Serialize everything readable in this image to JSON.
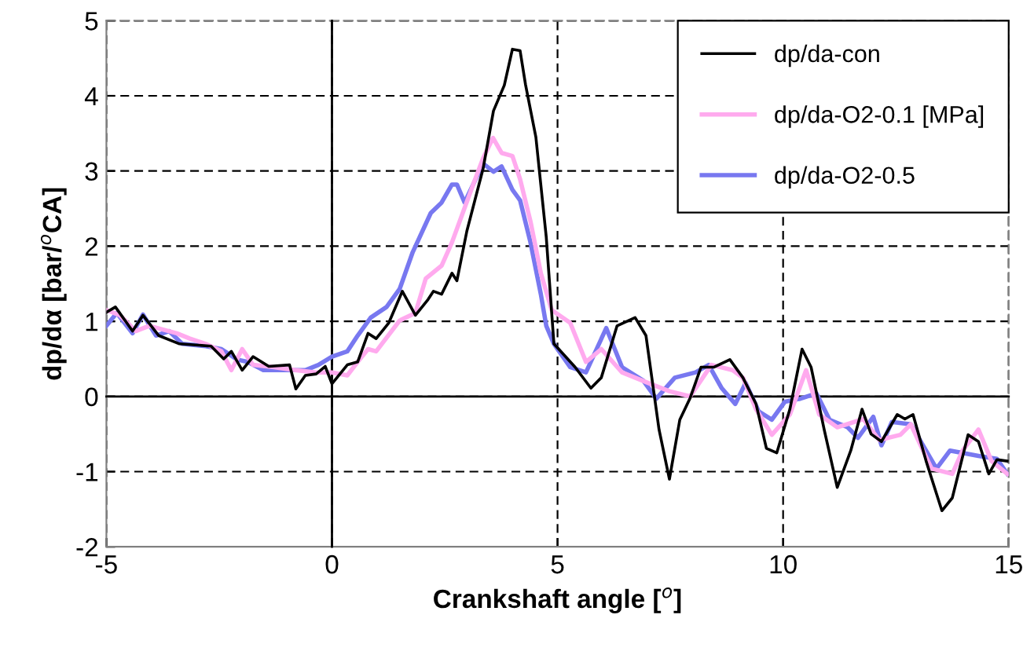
{
  "chart_data": {
    "type": "line",
    "xlabel": "Crankshaft angle [$^{o}$]",
    "ylabel": "dp/dα [bar/$^{o}$CA]",
    "xlim": [
      -5,
      15
    ],
    "xticks": [
      -5,
      0,
      5,
      10,
      15
    ],
    "ylim": [
      -2,
      5
    ],
    "yticks": [
      -2,
      -1,
      0,
      1,
      2,
      3,
      4,
      5
    ],
    "grid": true,
    "legend": "top right",
    "line_style": "solid",
    "marker": "none",
    "series": [
      {
        "name": "dp/da-con",
        "color": "#000000",
        "x": [
          -5,
          -4.8,
          -4.42,
          -4.19,
          -3.84,
          -3.38,
          -2.68,
          -2.4,
          -2.23,
          -1.99,
          -1.75,
          -1.4,
          -0.94,
          -0.8,
          -0.59,
          -0.35,
          -0.15,
          0,
          0.34,
          0.57,
          0.8,
          0.98,
          1.26,
          1.56,
          1.85,
          2.13,
          2.25,
          2.43,
          2.66,
          2.77,
          2.99,
          3.35,
          3.58,
          3.82,
          4.0,
          4.17,
          4.29,
          4.52,
          4.75,
          4.92,
          5.39,
          5.74,
          5.97,
          6.32,
          6.72,
          6.96,
          7.25,
          7.48,
          7.71,
          7.94,
          8.18,
          8.47,
          8.82,
          9.11,
          9.4,
          9.63,
          9.86,
          10.15,
          10.42,
          10.62,
          10.91,
          11.2,
          11.5,
          11.75,
          11.95,
          12.18,
          12.53,
          12.7,
          12.88,
          13.17,
          13.52,
          13.75,
          14.1,
          14.33,
          14.56,
          14.74,
          14.97
        ],
        "values": [
          1.12,
          1.19,
          0.87,
          1.08,
          0.81,
          0.7,
          0.67,
          0.5,
          0.6,
          0.35,
          0.53,
          0.4,
          0.42,
          0.1,
          0.28,
          0.3,
          0.4,
          0.17,
          0.42,
          0.46,
          0.84,
          0.77,
          0.98,
          1.4,
          1.08,
          1.29,
          1.4,
          1.36,
          1.64,
          1.54,
          2.2,
          3.03,
          3.8,
          4.14,
          4.62,
          4.6,
          4.15,
          3.45,
          2.12,
          0.7,
          0.39,
          0.11,
          0.25,
          0.94,
          1.05,
          0.81,
          -0.44,
          -1.1,
          -0.31,
          -0.02,
          0.39,
          0.39,
          0.49,
          0.25,
          -0.1,
          -0.69,
          -0.75,
          -0.17,
          0.63,
          0.39,
          -0.44,
          -1.21,
          -0.72,
          -0.17,
          -0.5,
          -0.6,
          -0.24,
          -0.3,
          -0.24,
          -0.86,
          -1.52,
          -1.35,
          -0.51,
          -0.6,
          -1.03,
          -0.84,
          -0.86
        ]
      },
      {
        "name": "dp/da-O2-0.1 [MPa]",
        "color": "#ffaaee",
        "x": [
          -5,
          -4.7,
          -4.35,
          -4.05,
          -3.44,
          -3.15,
          -2.8,
          -2.45,
          -2.23,
          -1.99,
          -1.75,
          -1.29,
          -0.82,
          -0.35,
          0,
          0.34,
          0.57,
          0.8,
          0.98,
          1.5,
          1.85,
          2.08,
          2.43,
          2.66,
          3.13,
          3.35,
          3.57,
          3.76,
          4.0,
          4.17,
          4.4,
          4.63,
          4.87,
          5.28,
          5.63,
          5.97,
          6.43,
          7.01,
          7.48,
          7.94,
          8.41,
          8.88,
          9.11,
          9.4,
          9.75,
          10.15,
          10.51,
          10.8,
          11.2,
          11.78,
          12.13,
          12.6,
          12.83,
          13.29,
          13.75,
          13.98,
          14.33,
          14.62,
          14.97
        ],
        "values": [
          1.15,
          1.08,
          0.87,
          0.94,
          0.84,
          0.77,
          0.7,
          0.6,
          0.35,
          0.63,
          0.42,
          0.39,
          0.35,
          0.32,
          0.32,
          0.28,
          0.46,
          0.63,
          0.6,
          1.01,
          1.11,
          1.57,
          1.74,
          2.05,
          2.82,
          3.17,
          3.44,
          3.24,
          3.2,
          2.89,
          2.33,
          1.64,
          1.15,
          0.98,
          0.46,
          0.63,
          0.32,
          0.18,
          0.07,
          0,
          0.42,
          0.35,
          0.25,
          -0.17,
          -0.51,
          -0.24,
          0.35,
          -0.24,
          -0.41,
          -0.3,
          -0.58,
          -0.51,
          -0.37,
          -0.96,
          -1.03,
          -0.72,
          -0.44,
          -0.86,
          -1.03
        ]
      },
      {
        "name": "dp/da-O2-0.5",
        "color": "#7878f0",
        "x": [
          -5,
          -4.77,
          -4.42,
          -4.19,
          -3.9,
          -3.61,
          -3.32,
          -2.8,
          -2.45,
          -2.1,
          -1.87,
          -1.52,
          -1.06,
          -0.59,
          -0.3,
          0,
          0.34,
          0.57,
          0.86,
          1.21,
          1.5,
          1.79,
          2.19,
          2.43,
          2.66,
          2.77,
          2.94,
          3.35,
          3.58,
          3.76,
          4.0,
          4.17,
          4.4,
          4.63,
          4.75,
          4.92,
          5.28,
          5.63,
          6.08,
          6.43,
          6.9,
          7.19,
          7.6,
          8.06,
          8.35,
          8.64,
          8.94,
          9.17,
          9.46,
          9.75,
          10.04,
          10.38,
          10.74,
          11.03,
          11.43,
          11.66,
          12.0,
          12.18,
          12.41,
          12.83,
          13.4,
          13.7,
          14.33,
          14.74,
          14.97
        ],
        "values": [
          0.94,
          1.11,
          0.84,
          1.09,
          0.81,
          0.87,
          0.7,
          0.67,
          0.63,
          0.49,
          0.46,
          0.35,
          0.35,
          0.35,
          0.42,
          0.53,
          0.6,
          0.81,
          1.05,
          1.19,
          1.43,
          1.92,
          2.44,
          2.58,
          2.82,
          2.82,
          2.58,
          3.1,
          2.99,
          3.06,
          2.75,
          2.61,
          2.05,
          1.36,
          0.94,
          0.7,
          0.39,
          0.32,
          0.91,
          0.39,
          0.21,
          -0.03,
          0.25,
          0.32,
          0.42,
          0.11,
          -0.1,
          0.18,
          -0.2,
          -0.31,
          -0.07,
          -0.03,
          0.04,
          -0.31,
          -0.41,
          -0.55,
          -0.27,
          -0.65,
          -0.34,
          -0.37,
          -0.96,
          -0.72,
          -0.79,
          -0.83,
          -1.03
        ]
      }
    ]
  }
}
